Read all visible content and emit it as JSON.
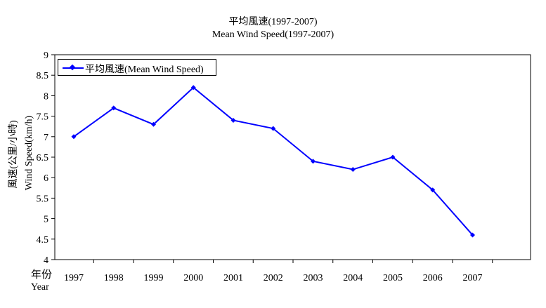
{
  "chart_data": {
    "type": "line",
    "title": "平均風速(1997-2007)",
    "subtitle": "Mean Wind Speed(1997-2007)",
    "ylabel_zh": "風速(公里/小時)",
    "ylabel_en": "Wind Speed(km/h)",
    "xlabel_zh": "年份",
    "xlabel_en": "Year",
    "categories": [
      "1997",
      "1998",
      "1999",
      "2000",
      "2001",
      "2002",
      "2003",
      "2004",
      "2005",
      "2006",
      "2007"
    ],
    "series": [
      {
        "name": "平均風速(Mean Wind Speed)",
        "values": [
          7.0,
          7.7,
          7.3,
          8.2,
          7.4,
          7.2,
          6.4,
          6.2,
          6.5,
          5.7,
          4.6
        ],
        "color": "#0000ff"
      }
    ],
    "ylim": [
      4,
      9
    ],
    "yticks": [
      "4",
      "4.5",
      "5",
      "5.5",
      "6",
      "6.5",
      "7",
      "7.5",
      "8",
      "8.5",
      "9"
    ],
    "grid": false,
    "legend_position": "top-left"
  }
}
